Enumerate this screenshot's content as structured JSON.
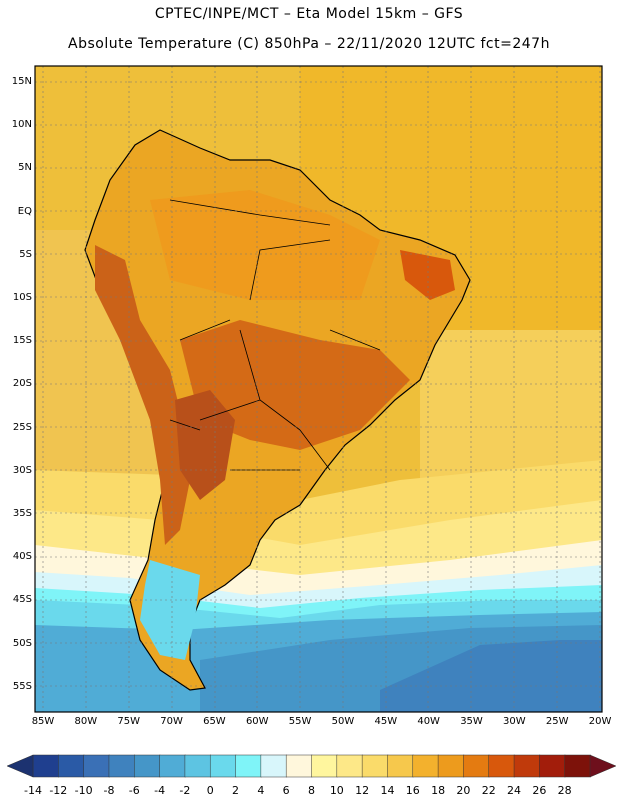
{
  "header": {
    "line1": "CPTEC/INPE/MCT –  Eta Model 15km – GFS",
    "line2": "Absolute Temperature (C) 850hPa – 22/11/2020 12UTC fct=247h"
  },
  "axes": {
    "lat_labels": [
      "15N",
      "10N",
      "5N",
      "EQ",
      "5S",
      "10S",
      "15S",
      "20S",
      "25S",
      "30S",
      "35S",
      "40S",
      "45S",
      "50S",
      "55S"
    ],
    "lon_labels": [
      "85W",
      "80W",
      "75W",
      "70W",
      "65W",
      "60W",
      "55W",
      "50W",
      "45W",
      "40W",
      "35W",
      "30W",
      "25W",
      "20W"
    ]
  },
  "colorbar": {
    "labels": [
      "-14",
      "-12",
      "-10",
      "-8",
      "-6",
      "-4",
      "-2",
      "0",
      "2",
      "4",
      "6",
      "8",
      "10",
      "12",
      "14",
      "16",
      "18",
      "20",
      "22",
      "24",
      "26",
      "28"
    ],
    "colors": [
      "#1f3f8f",
      "#2a5aa6",
      "#3a70b6",
      "#3f82be",
      "#4596c8",
      "#50acd6",
      "#5dc4e2",
      "#6ad9ec",
      "#7ff4f8",
      "#d8f6fb",
      "#fff7dc",
      "#fff69e",
      "#fde888",
      "#fadb6a",
      "#f6c84c",
      "#f3b12d",
      "#ed9b1d",
      "#e47b11",
      "#d8580c",
      "#c03a0b",
      "#a21d0b",
      "#7d120a"
    ],
    "low_color": "#1c3270",
    "high_color": "#6e0f1c"
  }
}
